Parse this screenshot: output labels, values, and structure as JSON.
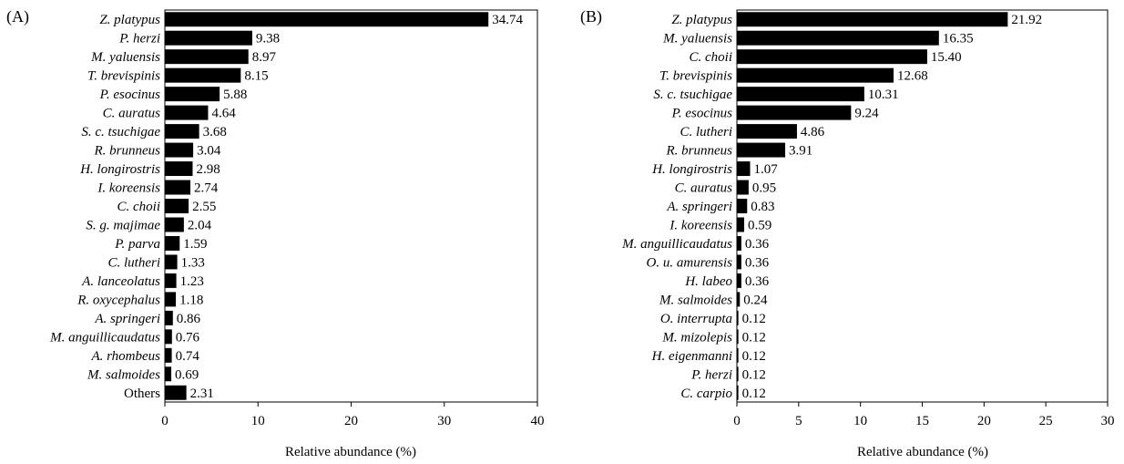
{
  "chart_data": [
    {
      "type": "bar",
      "orientation": "horizontal",
      "panel_label": "(A)",
      "xlabel": "Relative abundance (%)",
      "xlim": [
        0,
        40
      ],
      "xticks": [
        "0",
        "10",
        "20",
        "30",
        "40"
      ],
      "categories": [
        "Z. platypus",
        "P. herzi",
        "M. yaluensis",
        "T. brevispinis",
        "P. esocinus",
        "C. auratus",
        "S. c. tsuchigae",
        "R. brunneus",
        "H. longirostris",
        "I. koreensis",
        "C. choii",
        "S. g. majimae",
        "P. parva",
        "C. lutheri",
        "A. lanceolatus",
        "R. oxycephalus",
        "A. springeri",
        "M. anguillicaudatus",
        "A. rhombeus",
        "M. salmoides",
        "Others"
      ],
      "values": [
        34.74,
        9.38,
        8.97,
        8.15,
        5.88,
        4.64,
        3.68,
        3.04,
        2.98,
        2.74,
        2.55,
        2.04,
        1.59,
        1.33,
        1.23,
        1.18,
        0.86,
        0.76,
        0.74,
        0.69,
        2.31
      ],
      "value_labels": [
        "34.74",
        "9.38",
        "8.97",
        "8.15",
        "5.88",
        "4.64",
        "3.68",
        "3.04",
        "2.98",
        "2.74",
        "2.55",
        "2.04",
        "1.59",
        "1.33",
        "1.23",
        "1.18",
        "0.86",
        "0.76",
        "0.74",
        "0.69",
        "2.31"
      ],
      "bar_color": "#000000"
    },
    {
      "type": "bar",
      "orientation": "horizontal",
      "panel_label": "(B)",
      "xlabel": "Relative abundance (%)",
      "xlim": [
        0,
        30
      ],
      "xticks": [
        "0",
        "5",
        "10",
        "15",
        "20",
        "25",
        "30"
      ],
      "categories": [
        "Z. platypus",
        "M. yaluensis",
        "C. choii",
        "T. brevispinis",
        "S. c. tsuchigae",
        "P. esocinus",
        "C. lutheri",
        "R. brunneus",
        "H. longirostris",
        "C. auratus",
        "A. springeri",
        "I. koreensis",
        "M. anguillicaudatus",
        "O. u. amurensis",
        "H. labeo",
        "M. salmoides",
        "O. interrupta",
        "M. mizolepis",
        "H. eigenmanni",
        "P. herzi",
        "C. carpio"
      ],
      "values": [
        21.92,
        16.35,
        15.4,
        12.68,
        10.31,
        9.24,
        4.86,
        3.91,
        1.07,
        0.95,
        0.83,
        0.59,
        0.36,
        0.36,
        0.36,
        0.24,
        0.12,
        0.12,
        0.12,
        0.12,
        0.12
      ],
      "value_labels": [
        "21.92",
        "16.35",
        "15.40",
        "12.68",
        "10.31",
        "9.24",
        "4.86",
        "3.91",
        "1.07",
        "0.95",
        "0.83",
        "0.59",
        "0.36",
        "0.36",
        "0.36",
        "0.24",
        "0.12",
        "0.12",
        "0.12",
        "0.12",
        "0.12"
      ],
      "bar_color": "#000000"
    }
  ]
}
